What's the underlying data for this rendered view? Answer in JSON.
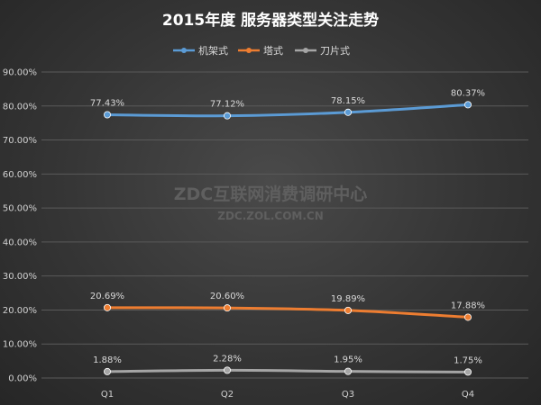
{
  "watermark": {
    "line1": "ZDC互联网消费调研中心",
    "line2": "ZDC.ZOL.COM.CN"
  },
  "chart_data": {
    "type": "line",
    "title": "2015年度 服务器类型关注走势",
    "categories": [
      "Q1",
      "Q2",
      "Q3",
      "Q4"
    ],
    "ylim": [
      0,
      90
    ],
    "yticks": [
      0,
      10,
      20,
      30,
      40,
      50,
      60,
      70,
      80,
      90
    ],
    "ytick_labels": [
      "0.00%",
      "10.00%",
      "20.00%",
      "30.00%",
      "40.00%",
      "50.00%",
      "60.00%",
      "70.00%",
      "80.00%",
      "90.00%"
    ],
    "grid": true,
    "legend_position": "top",
    "series": [
      {
        "name": "机架式",
        "color": "#5b9bd5",
        "values": [
          77.43,
          77.12,
          78.15,
          80.37
        ],
        "labels": [
          "77.43%",
          "77.12%",
          "78.15%",
          "80.37%"
        ]
      },
      {
        "name": "塔式",
        "color": "#ed7d31",
        "values": [
          20.69,
          20.6,
          19.89,
          17.88
        ],
        "labels": [
          "20.69%",
          "20.60%",
          "19.89%",
          "17.88%"
        ]
      },
      {
        "name": "刀片式",
        "color": "#a5a5a5",
        "values": [
          1.88,
          2.28,
          1.95,
          1.75
        ],
        "labels": [
          "1.88%",
          "2.28%",
          "1.95%",
          "1.75%"
        ]
      }
    ]
  }
}
